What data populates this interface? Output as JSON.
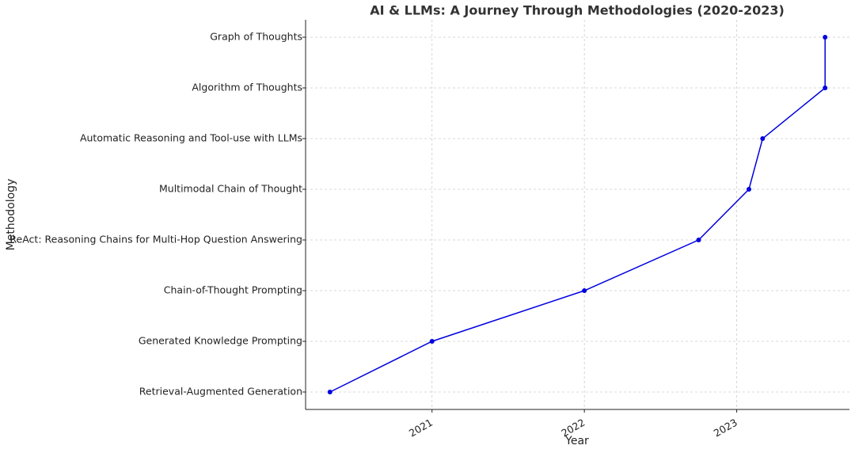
{
  "chart_data": {
    "type": "line",
    "title": "AI & LLMs: A Journey Through Methodologies (2020-2023)",
    "x_label": "Year",
    "y_label": "Methodology",
    "categories": [
      "Retrieval-Augmented Generation",
      "Generated Knowledge Prompting",
      "Chain-of-Thought Prompting",
      "ReAct: Reasoning Chains for Multi-Hop Question Answering",
      "Multimodal Chain of Thought",
      "Automatic Reasoning and Tool-use with LLMs",
      "Algorithm of Thoughts",
      "Graph of Thoughts"
    ],
    "x": [
      2020.33,
      2021,
      2022,
      2022.75,
      2023.08,
      2023.17,
      2023.58,
      2023.58
    ],
    "xlim": [
      2020.17,
      2023.74
    ],
    "xticks": [
      2021,
      2022,
      2023
    ],
    "color": "#0000e0",
    "grid": true
  }
}
